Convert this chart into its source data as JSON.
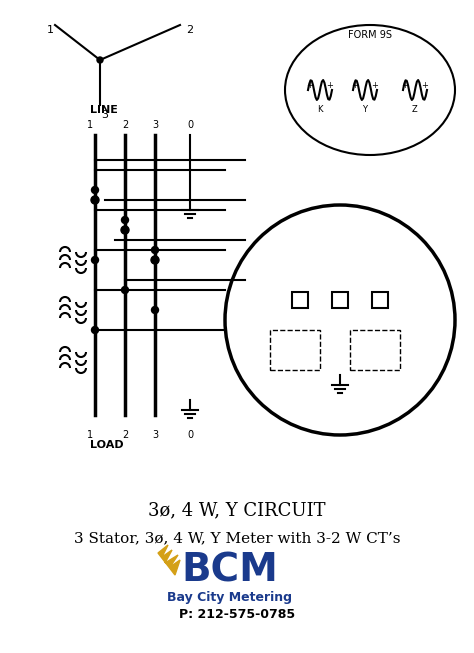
{
  "title_line1": "3ø, 4 W, Y CIRCUIT",
  "title_line2": "3 Stator, 3ø, 4 W, Y Meter with 3-2 W CT’s",
  "phone": "P: 212-575-0785",
  "company": "Bay City Metering",
  "bcm_color": "#1a3a8c",
  "gold_color": "#d4a017",
  "bg_color": "#ffffff",
  "line_color": "#000000",
  "form_label": "FORM 9S",
  "line_labels": [
    "1",
    "2",
    "3",
    "0"
  ],
  "load_labels": [
    "1",
    "2",
    "3",
    "0"
  ],
  "line_text": "LINE",
  "load_text": "LOAD",
  "k_label": "K",
  "y_label": "Y",
  "z_label": "Z"
}
